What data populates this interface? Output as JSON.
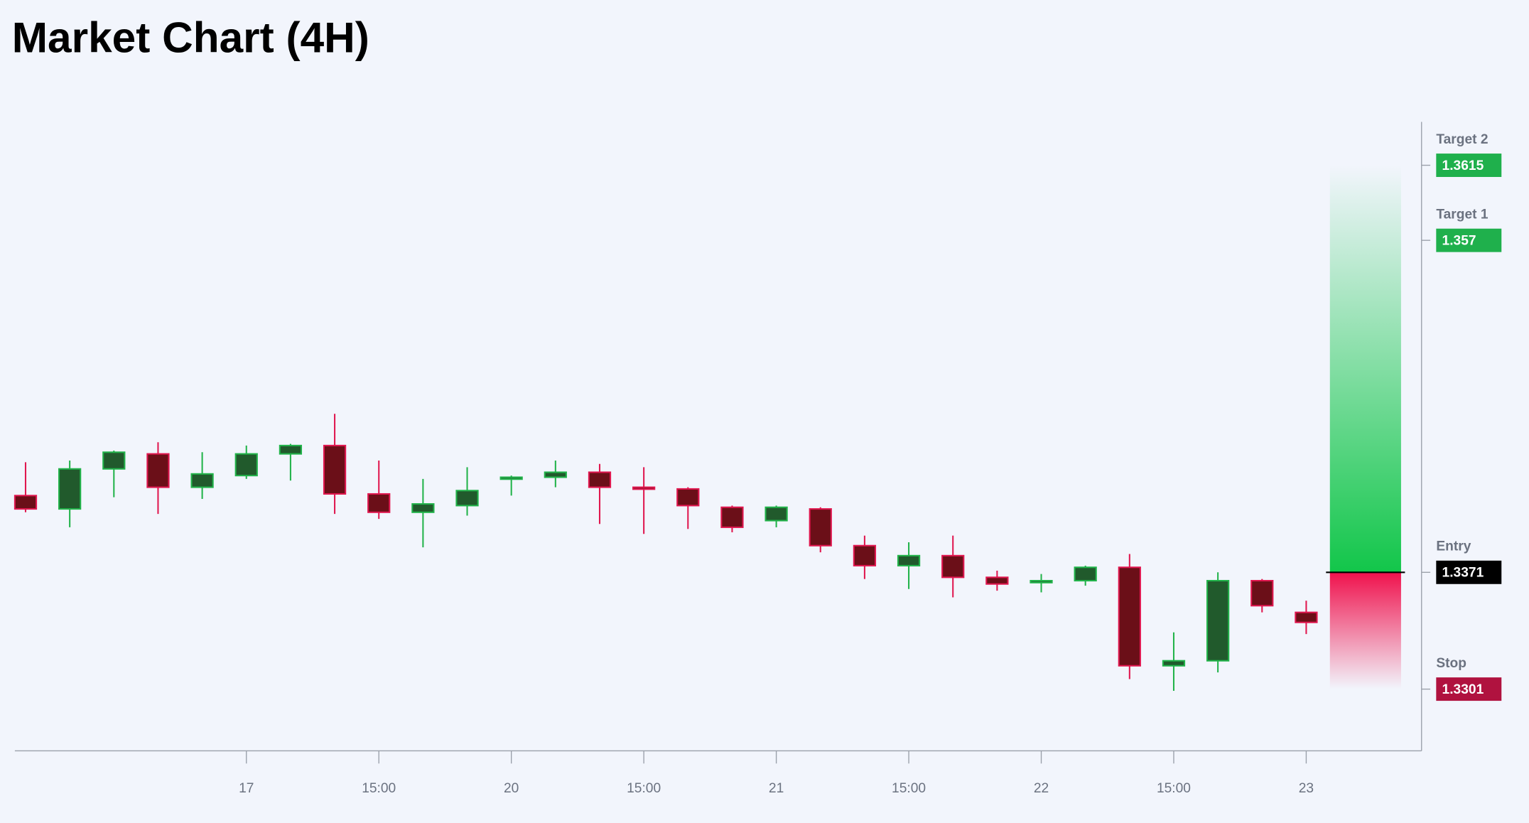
{
  "chart_data": {
    "type": "candlestick",
    "title": "Market Chart (4H)",
    "categories": [
      null,
      null,
      null,
      null,
      null,
      "17",
      null,
      null,
      "15:00",
      null,
      null,
      "20",
      null,
      null,
      "15:00",
      null,
      null,
      "21",
      null,
      null,
      "15:00",
      null,
      null,
      "22",
      null,
      null,
      "15:00",
      null,
      null,
      "23"
    ],
    "open": [
      1.3417,
      1.3409,
      1.3433,
      1.3442,
      1.3422,
      1.3429,
      1.3442,
      1.3447,
      1.3418,
      1.3407,
      1.3411,
      1.3427,
      1.3428,
      1.3431,
      1.3422,
      1.3421,
      1.341,
      1.3402,
      1.3409,
      1.3387,
      1.3375,
      1.3381,
      1.3368,
      1.3365,
      1.3366,
      1.3374,
      1.3315,
      1.3318,
      1.3366,
      1.3347
    ],
    "high": [
      1.3437,
      1.3438,
      1.3444,
      1.3449,
      1.3443,
      1.3447,
      1.3448,
      1.3466,
      1.3438,
      1.3427,
      1.3434,
      1.3429,
      1.3438,
      1.3436,
      1.3434,
      1.3422,
      1.3411,
      1.3411,
      1.341,
      1.3393,
      1.3389,
      1.3393,
      1.3372,
      1.337,
      1.3375,
      1.3382,
      1.3335,
      1.3371,
      1.3367,
      1.3354
    ],
    "low": [
      1.3407,
      1.3398,
      1.3416,
      1.3406,
      1.3415,
      1.3427,
      1.3426,
      1.3406,
      1.3403,
      1.3386,
      1.3405,
      1.3417,
      1.3422,
      1.34,
      1.3394,
      1.3397,
      1.3395,
      1.3398,
      1.3383,
      1.3367,
      1.3361,
      1.3356,
      1.336,
      1.3359,
      1.3363,
      1.3307,
      1.33,
      1.3311,
      1.3347,
      1.3334
    ],
    "close": [
      1.3409,
      1.3433,
      1.3443,
      1.3422,
      1.343,
      1.3442,
      1.3447,
      1.3418,
      1.3407,
      1.3412,
      1.342,
      1.3428,
      1.3431,
      1.3422,
      1.3421,
      1.3411,
      1.3398,
      1.341,
      1.3387,
      1.3375,
      1.3381,
      1.3368,
      1.3364,
      1.3366,
      1.3374,
      1.3315,
      1.3318,
      1.3366,
      1.3351,
      1.3341
    ],
    "up_color": "#22b34a",
    "down_color": "#e0174f",
    "ylim": [
      1.3264,
      1.3641
    ],
    "levels": [
      {
        "label": "Target 2",
        "value": 1.3615,
        "color": "#1fb04c"
      },
      {
        "label": "Target 1",
        "value": 1.357,
        "color": "#1fb04c"
      },
      {
        "label": "Entry",
        "value": 1.3371,
        "color": "#000000"
      },
      {
        "label": "Stop",
        "value": 1.3301,
        "color": "#b0123f"
      }
    ]
  }
}
